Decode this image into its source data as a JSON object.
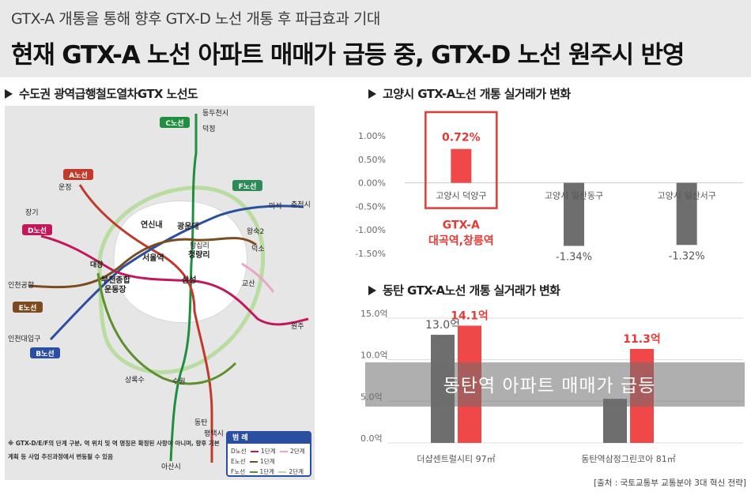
{
  "header": {
    "subtitle": "GTX-A 개통을 통해 향후 GTX-D 노선 개통 후 파급효과 기대",
    "title": "현재 GTX-A 노선 아파트 매매가 급등 중, GTX-D 노선 원주시 반영"
  },
  "map": {
    "section_title": "수도권 광역급행철도열차GTX 노선도",
    "line_badges": {
      "A": "A노선",
      "B": "B노선",
      "C": "C노선",
      "D": "D노선",
      "E": "E노선",
      "F": "F노선"
    },
    "station_labels": {
      "dongducheon": "동두천시",
      "deokjeong": "덕정",
      "unjeong": "운정",
      "janggi": "장기",
      "yeonsinnae": "연신내",
      "gwangunde": "광운대",
      "wangsimni": "왕십리",
      "seoulyeok": "서울역",
      "cheongnyangni": "청량리",
      "daejang": "대장",
      "bucheon_a": "부천종합",
      "bucheon_b": "운동장",
      "incheon_airport": "인천공항",
      "incheon_port": "인천대입구",
      "samseong": "삼성",
      "masuk": "마석",
      "chuncheon": "춘천시",
      "wangsuk2": "왕숙2",
      "deokso": "덕소",
      "gyosan": "교산",
      "wonju": "원주",
      "dongtan": "동탄",
      "sangnoksu": "상록수",
      "suwon": "수원",
      "pyeongtaek": "평택시",
      "asan": "아산시"
    },
    "note": "※ GTX-D/E/F의 단계 구분, 역 위치 및 역 명칭은 확정된 사항이 아니며, 향후 기본계획 등 사업 추진과정에서 변동될 수 있음",
    "legend": {
      "title": "범 례",
      "rows": [
        {
          "line": "D노선",
          "stage1": "1단계",
          "stage2": "2단계"
        },
        {
          "line": "E노선",
          "stage1": "1단계",
          "stage2": ""
        },
        {
          "line": "F노선",
          "stage1": "1단계",
          "stage2": "2단계"
        }
      ]
    },
    "colors": {
      "A": "#c0392b",
      "B": "#2b4fa0",
      "C": "#1f8f3f",
      "D": "#c2185b",
      "E": "#7b4a1e",
      "F": "#5d8f2e",
      "D_stage2": "#e8a7c9",
      "F_stage2": "#b9dca0"
    }
  },
  "chart_data": [
    {
      "type": "bar",
      "title": "고양시 GTX-A노선 개통 실거래가 변화",
      "categories": [
        "고양시 덕양구",
        "고양시 일산동구",
        "고양시 일산서구"
      ],
      "values": [
        0.72,
        -1.34,
        -1.32
      ],
      "value_labels": [
        "0.72%",
        "-1.34%",
        "-1.32%"
      ],
      "ylim": [
        -1.5,
        1.0
      ],
      "yticks": [
        1.0,
        0.5,
        0.0,
        -0.5,
        -1.0,
        -1.5
      ],
      "ytick_labels": [
        "1.00%",
        "0.50%",
        "0.00%",
        "-0.50%",
        "-1.00%",
        "-1.50%"
      ],
      "colors": [
        "#f04848",
        "#6e6e6e",
        "#6e6e6e"
      ],
      "highlight_box": {
        "category_index": 0,
        "color": "#e53935"
      },
      "annotation": [
        "GTX-A",
        "대곡역,창릉역"
      ],
      "grid": false,
      "legend": "none"
    },
    {
      "type": "bar",
      "title": "동탄 GTX-A노선 개통 실거래가 변화",
      "categories": [
        "더샵센트럴시티 97㎡",
        "동탄역삼정그린코아 81㎡"
      ],
      "series": [
        {
          "values": [
            13.0,
            5.3
          ],
          "color": "#6e6e6e"
        },
        {
          "values": [
            14.1,
            11.3
          ],
          "color": "#f04848"
        }
      ],
      "value_labels": [
        [
          "13.0억",
          ""
        ],
        [
          "14.1억",
          "11.3억"
        ]
      ],
      "ylim": [
        0,
        15
      ],
      "yticks": [
        15,
        10,
        5,
        0
      ],
      "ytick_labels": [
        "15.0억",
        "10.0억",
        "5.0억",
        "0.0억"
      ],
      "grid": true,
      "legend": "none",
      "banner": "동탄역 아파트 매매가 급등"
    }
  ],
  "source": "[출처 : 국토교통부 교통분야 3대 혁신 전략]"
}
